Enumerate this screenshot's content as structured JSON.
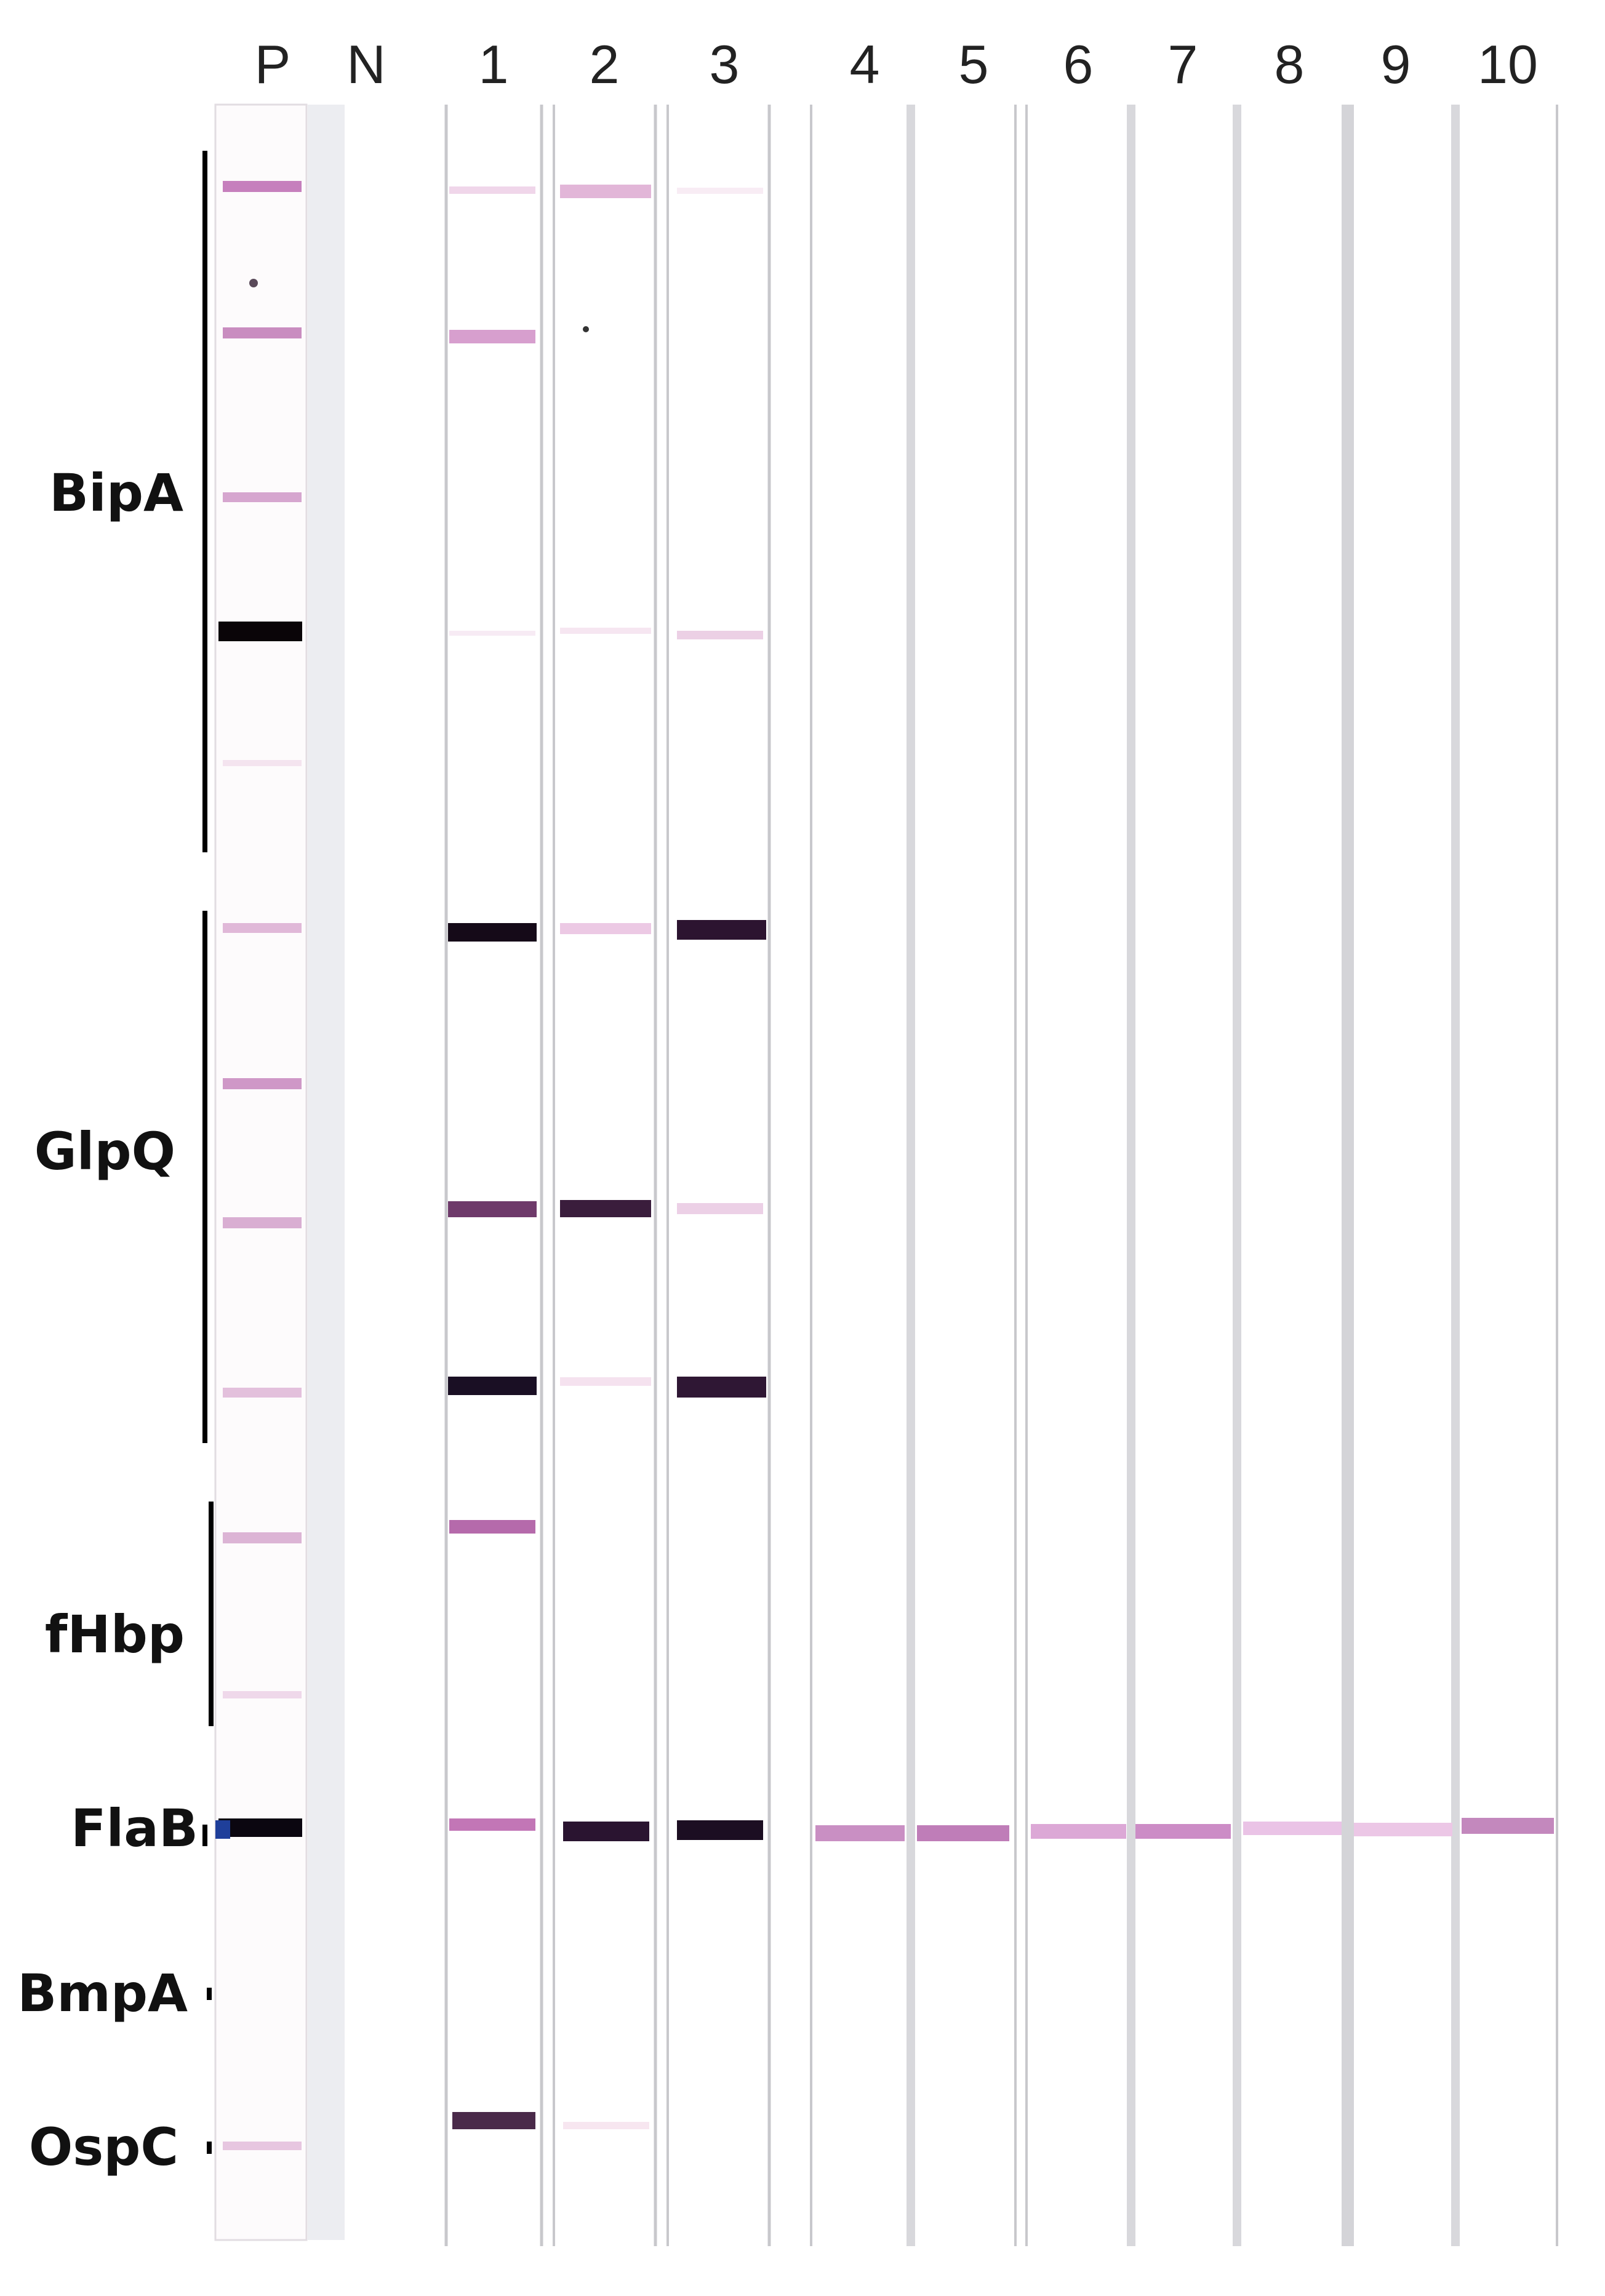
{
  "lanes": [
    {
      "label": "P"
    },
    {
      "label": "N"
    },
    {
      "label": "1"
    },
    {
      "label": "2"
    },
    {
      "label": "3"
    },
    {
      "label": "4"
    },
    {
      "label": "5"
    },
    {
      "label": "6"
    },
    {
      "label": "7"
    },
    {
      "label": "8"
    },
    {
      "label": "9"
    },
    {
      "label": "10"
    }
  ],
  "groups": [
    {
      "label": "BipA"
    },
    {
      "label": "GlpQ"
    },
    {
      "label": "fHbp"
    },
    {
      "label": "FlaB"
    },
    {
      "label": "BmpA"
    },
    {
      "label": "OspC"
    }
  ],
  "colors": {
    "band_dark": "#1a0f24",
    "band_medium": "#6e3a6a",
    "band_light": "#c98dc0",
    "band_faint": "#f0d6ea",
    "strip_edge": "#c8c8cc"
  }
}
